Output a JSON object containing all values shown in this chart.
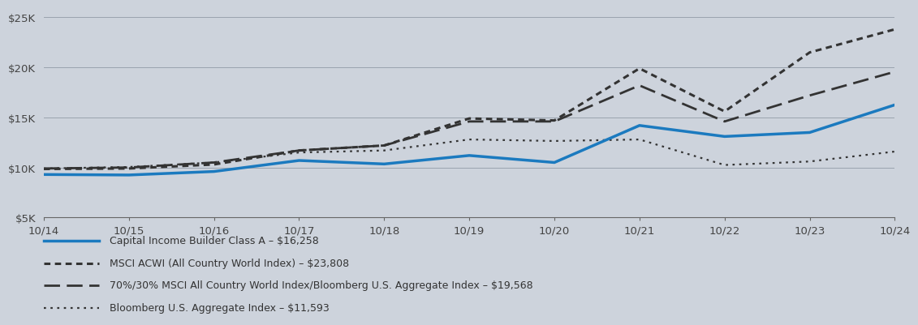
{
  "background_color": "#cdd3dc",
  "plot_bg_color": "#cdd3dc",
  "xlim": [
    0,
    10
  ],
  "ylim": [
    5000,
    26000
  ],
  "yticks": [
    5000,
    10000,
    15000,
    20000,
    25000
  ],
  "ytick_labels": [
    "$5K",
    "$10K",
    "$15K",
    "$20K",
    "$25K"
  ],
  "xtick_labels": [
    "10/14",
    "10/15",
    "10/16",
    "10/17",
    "10/18",
    "10/19",
    "10/20",
    "10/21",
    "10/22",
    "10/23",
    "10/24"
  ],
  "series_cib": {
    "label": "Capital Income Builder Class A – $16,258",
    "color": "#1b7abf",
    "linewidth": 2.5,
    "values": [
      9300,
      9250,
      9600,
      10700,
      10350,
      11200,
      10500,
      14200,
      13100,
      13500,
      16258
    ]
  },
  "series_msci": {
    "label": "MSCI ACWI (All Country World Index) – $23,808",
    "color": "#333333",
    "linewidth": 2.2,
    "values": [
      9850,
      9900,
      10300,
      11700,
      12200,
      14900,
      14700,
      19900,
      15600,
      21500,
      23808
    ]
  },
  "series_blend": {
    "label": "70%/30% MSCI All Country World Index/Bloomberg U.S. Aggregate Index – $19,568",
    "color": "#333333",
    "linewidth": 2.0,
    "values": [
      9900,
      10000,
      10500,
      11700,
      12200,
      14600,
      14600,
      18200,
      14600,
      17200,
      19568
    ]
  },
  "series_bbg": {
    "label": "Bloomberg U.S. Aggregate Index – $11,593",
    "color": "#333333",
    "linewidth": 1.6,
    "values": [
      9900,
      10050,
      10500,
      11500,
      11700,
      12800,
      12650,
      12800,
      10250,
      10600,
      11593
    ]
  },
  "tick_fontsize": 9.5,
  "grid_color": "#9aa3ae",
  "grid_linewidth": 0.7,
  "spine_color": "#666666"
}
